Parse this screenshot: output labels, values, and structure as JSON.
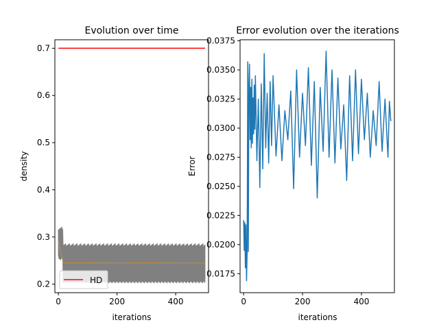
{
  "chart_data": [
    {
      "type": "line",
      "title": "Evolution over time",
      "xlabel": "iterations",
      "ylabel": "density",
      "xlim": [
        -12,
        512
      ],
      "ylim": [
        0.182,
        0.718
      ],
      "xticks": [
        0,
        200,
        400
      ],
      "yticks": [
        0.2,
        0.3,
        0.4,
        0.5,
        0.6,
        0.7
      ],
      "xtick_labels": [
        "0",
        "200",
        "400"
      ],
      "ytick_labels": [
        "0.2",
        "0.3",
        "0.4",
        "0.5",
        "0.6",
        "0.7"
      ],
      "grid": false,
      "legend": {
        "placement": "lower-left",
        "entries": [
          {
            "label": "HD",
            "color": "#ff0000"
          }
        ]
      },
      "series": [
        {
          "name": "HD",
          "color": "#ff0000",
          "x": [
            0,
            500
          ],
          "y": [
            0.7,
            0.7
          ]
        },
        {
          "color": "#808080",
          "style": "band",
          "x": [
            0,
            16,
            500
          ],
          "lower": [
            0.262,
            0.213,
            0.213
          ],
          "upper": [
            0.315,
            0.28,
            0.28
          ]
        },
        {
          "color": "#ffa500",
          "style": "dotted",
          "x": [
            0,
            16,
            500
          ],
          "y": [
            0.291,
            0.245,
            0.245
          ]
        }
      ]
    },
    {
      "type": "line",
      "title": "Error evolution over the iterations",
      "xlabel": "iterations",
      "ylabel": "Error",
      "xlim": [
        -12,
        512
      ],
      "ylim": [
        0.01587,
        0.03759
      ],
      "xticks": [
        0,
        200,
        400
      ],
      "yticks": [
        0.0175,
        0.02,
        0.0225,
        0.025,
        0.0275,
        0.03,
        0.0325,
        0.035,
        0.0375
      ],
      "xtick_labels": [
        "0",
        "200",
        "400"
      ],
      "ytick_labels": [
        "0.0175",
        "0.0200",
        "0.0225",
        "0.0250",
        "0.0275",
        "0.0300",
        "0.0325",
        "0.0350",
        "0.0375"
      ],
      "grid": false,
      "series": [
        {
          "color": "#1f77b4",
          "x": [
            0,
            2,
            4,
            6,
            8,
            10,
            12,
            14,
            16,
            18,
            20,
            22,
            24,
            26,
            28,
            30,
            32,
            34,
            36,
            38,
            40,
            45,
            50,
            55,
            60,
            65,
            70,
            75,
            80,
            85,
            90,
            95,
            100,
            110,
            120,
            130,
            140,
            150,
            160,
            170,
            180,
            190,
            200,
            210,
            220,
            230,
            240,
            250,
            260,
            270,
            280,
            290,
            300,
            310,
            320,
            330,
            340,
            350,
            360,
            370,
            380,
            390,
            400,
            410,
            420,
            430,
            440,
            450,
            460,
            470,
            480,
            490,
            495,
            500
          ],
          "y": [
            0.0221,
            0.0195,
            0.0219,
            0.018,
            0.0217,
            0.0169,
            0.0193,
            0.0357,
            0.0194,
            0.0338,
            0.0355,
            0.029,
            0.0335,
            0.0283,
            0.0342,
            0.0287,
            0.0326,
            0.0295,
            0.0337,
            0.0299,
            0.0345,
            0.0272,
            0.0325,
            0.0249,
            0.0338,
            0.0265,
            0.0364,
            0.0283,
            0.033,
            0.027,
            0.034,
            0.0285,
            0.0345,
            0.0276,
            0.032,
            0.0272,
            0.0315,
            0.029,
            0.0332,
            0.0248,
            0.035,
            0.0275,
            0.033,
            0.0285,
            0.0352,
            0.0268,
            0.034,
            0.024,
            0.0335,
            0.028,
            0.0366,
            0.0275,
            0.035,
            0.027,
            0.0343,
            0.0282,
            0.032,
            0.0255,
            0.0345,
            0.0272,
            0.035,
            0.0278,
            0.0342,
            0.029,
            0.033,
            0.0275,
            0.0315,
            0.0285,
            0.034,
            0.028,
            0.0325,
            0.0275,
            0.0323,
            0.0306
          ]
        }
      ]
    }
  ]
}
